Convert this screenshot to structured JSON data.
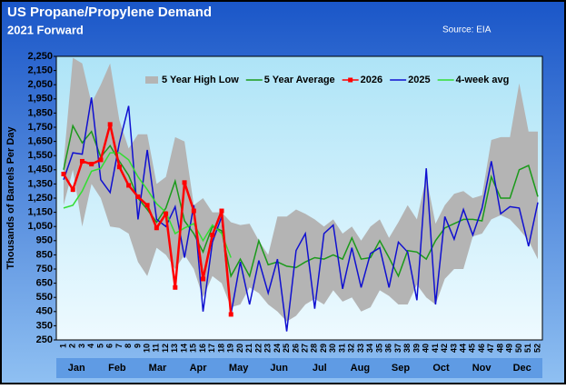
{
  "chart_data": {
    "type": "line",
    "title": "US Propane/Propylene Demand",
    "subtitle": "2021 Forward",
    "source": "Source: EIA",
    "y_label": "Thousands of Barrels Per Day",
    "categories": [
      "1",
      "2",
      "3",
      "4",
      "5",
      "6",
      "7",
      "8",
      "9",
      "10",
      "11",
      "12",
      "13",
      "14",
      "15",
      "16",
      "17",
      "18",
      "19",
      "20",
      "21",
      "22",
      "23",
      "24",
      "25",
      "26",
      "27",
      "28",
      "29",
      "30",
      "31",
      "32",
      "33",
      "34",
      "35",
      "36",
      "37",
      "38",
      "39",
      "40",
      "41",
      "42",
      "43",
      "44",
      "45",
      "46",
      "47",
      "48",
      "49",
      "50",
      "51",
      "52"
    ],
    "months": [
      "Jan",
      "Feb",
      "Mar",
      "Apr",
      "May",
      "Jun",
      "Jul",
      "Aug",
      "Sep",
      "Oct",
      "Nov",
      "Dec"
    ],
    "ylim": [
      250,
      2250
    ],
    "yticks": [
      250,
      350,
      450,
      550,
      650,
      750,
      850,
      950,
      {
        "value": 1050,
        "label": "1,050"
      },
      {
        "value": 1150,
        "label": "1,150"
      },
      {
        "value": 1250,
        "label": "1,250"
      },
      {
        "value": 1350,
        "label": "1,350"
      },
      {
        "value": 1450,
        "label": "1,450"
      },
      {
        "value": 1550,
        "label": "1,550"
      },
      {
        "value": 1650,
        "label": "1,650"
      },
      {
        "value": 1750,
        "label": "1,750"
      },
      {
        "value": 1850,
        "label": "1,850"
      },
      {
        "value": 1950,
        "label": "1,950"
      },
      {
        "value": 2050,
        "label": "2,050"
      },
      {
        "value": 2150,
        "label": "2,150"
      },
      {
        "value": 2250,
        "label": "2,250"
      }
    ],
    "series": [
      {
        "name": "5 Year High Low",
        "color": "#b4b4b4",
        "high": [
          1500,
          2240,
          2200,
          1920,
          2050,
          2200,
          1800,
          1600,
          1700,
          1700,
          1350,
          1400,
          1680,
          1650,
          1200,
          1250,
          1150,
          1150,
          1080,
          1060,
          1070,
          950,
          850,
          1120,
          1120,
          1170,
          1140,
          1100,
          1050,
          1100,
          1000,
          1050,
          950,
          1050,
          1100,
          970,
          1080,
          1200,
          1100,
          1400,
          1070,
          1200,
          1280,
          1300,
          1250,
          1270,
          1660,
          1680,
          1680,
          2060,
          1720,
          1720
        ],
        "low": [
          1200,
          1450,
          1050,
          1350,
          1250,
          1050,
          1040,
          1000,
          800,
          700,
          900,
          850,
          750,
          850,
          750,
          550,
          700,
          650,
          480,
          500,
          620,
          580,
          500,
          450,
          380,
          420,
          500,
          540,
          500,
          600,
          520,
          550,
          450,
          480,
          600,
          560,
          500,
          500,
          640,
          550,
          500,
          680,
          750,
          750,
          980,
          1000,
          1100,
          1130,
          1100,
          1030,
          950,
          820
        ]
      },
      {
        "name": "5 Year Average",
        "color": "#1a9a1a",
        "values": [
          1450,
          1760,
          1640,
          1720,
          1540,
          1620,
          1510,
          1410,
          1250,
          1170,
          1080,
          1180,
          1370,
          1090,
          1000,
          870,
          1050,
          1020,
          700,
          820,
          700,
          950,
          780,
          800,
          770,
          760,
          800,
          830,
          820,
          850,
          820,
          970,
          820,
          830,
          950,
          830,
          700,
          880,
          870,
          820,
          950,
          1040,
          1070,
          1100,
          1100,
          1090,
          1400,
          1250,
          1250,
          1450,
          1480,
          1260
        ]
      },
      {
        "name": "2026",
        "color": "#ff0000",
        "values": [
          1420,
          1310,
          1510,
          1490,
          1520,
          1770,
          1470,
          1340,
          1260,
          1200,
          1040,
          1140,
          620,
          1360,
          1160,
          680,
          990,
          1160,
          430,
          null,
          null,
          null,
          null,
          null,
          null,
          null,
          null,
          null,
          null,
          null,
          null,
          null,
          null,
          null,
          null,
          null,
          null,
          null,
          null,
          null,
          null,
          null,
          null,
          null,
          null,
          null,
          null,
          null,
          null,
          null,
          null,
          null
        ]
      },
      {
        "name": "2025",
        "color": "#1010d0",
        "values": [
          1380,
          1570,
          1560,
          1960,
          1380,
          1290,
          1640,
          1900,
          1100,
          1590,
          1100,
          1050,
          1190,
          830,
          1200,
          450,
          940,
          1120,
          430,
          800,
          500,
          810,
          580,
          820,
          310,
          880,
          1000,
          470,
          1000,
          1060,
          610,
          900,
          620,
          860,
          900,
          620,
          940,
          870,
          530,
          1460,
          500,
          1120,
          960,
          1170,
          990,
          1180,
          1510,
          1140,
          1190,
          1180,
          910,
          1220
        ]
      },
      {
        "name": "4-week avg",
        "color": "#33dd33",
        "values": [
          1180,
          1200,
          1300,
          1440,
          1460,
          1570,
          1570,
          1520,
          1400,
          1310,
          1210,
          1150,
          1000,
          1040,
          1070,
          950,
          1060,
          1000,
          830,
          null,
          null,
          null,
          null,
          null,
          null,
          null,
          null,
          null,
          null,
          null,
          null,
          null,
          null,
          null,
          null,
          null,
          null,
          null,
          null,
          null,
          null,
          null,
          null,
          null,
          null,
          null,
          null,
          null,
          null,
          null,
          null,
          null
        ]
      }
    ]
  }
}
